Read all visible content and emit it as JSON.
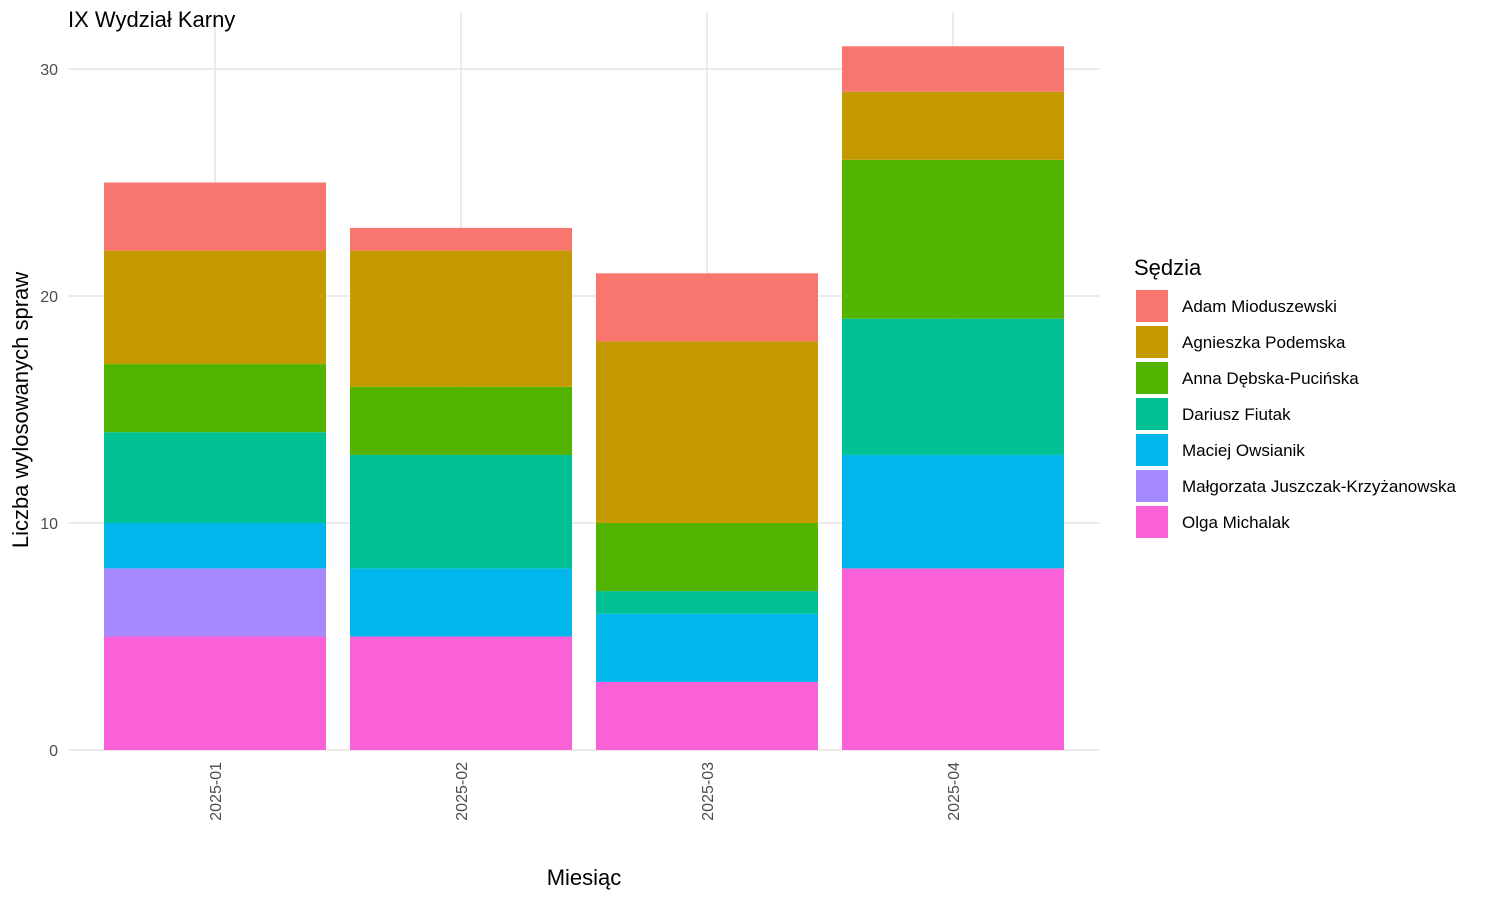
{
  "chart_data": {
    "type": "bar",
    "stacked": true,
    "title": "IX Wydział Karny",
    "xlabel": "Miesiąc",
    "ylabel": "Liczba wylosowanych spraw",
    "categories": [
      "2025-01",
      "2025-02",
      "2025-03",
      "2025-04"
    ],
    "ylim": [
      0,
      31
    ],
    "yticks": [
      0,
      10,
      20,
      30
    ],
    "grid": true,
    "legend": {
      "title": "Sędzia",
      "position": "right"
    },
    "series": [
      {
        "name": "Adam Mioduszewski",
        "color": "#F8766D",
        "values": [
          3,
          1,
          3,
          2
        ]
      },
      {
        "name": "Agnieszka Podemska",
        "color": "#C49A00",
        "values": [
          5,
          6,
          8,
          3
        ]
      },
      {
        "name": "Anna Dębska-Pucińska",
        "color": "#53B400",
        "values": [
          3,
          3,
          3,
          7
        ]
      },
      {
        "name": "Dariusz Fiutak",
        "color": "#00C094",
        "values": [
          4,
          5,
          1,
          6
        ]
      },
      {
        "name": "Maciej Owsianik",
        "color": "#00B6EB",
        "values": [
          2,
          3,
          3,
          5
        ]
      },
      {
        "name": "Małgorzata Juszczak-Krzyżanowska",
        "color": "#A58AFF",
        "values": [
          3,
          0,
          0,
          0
        ]
      },
      {
        "name": "Olga Michalak",
        "color": "#FB61D7",
        "values": [
          5,
          5,
          3,
          8
        ]
      }
    ]
  }
}
